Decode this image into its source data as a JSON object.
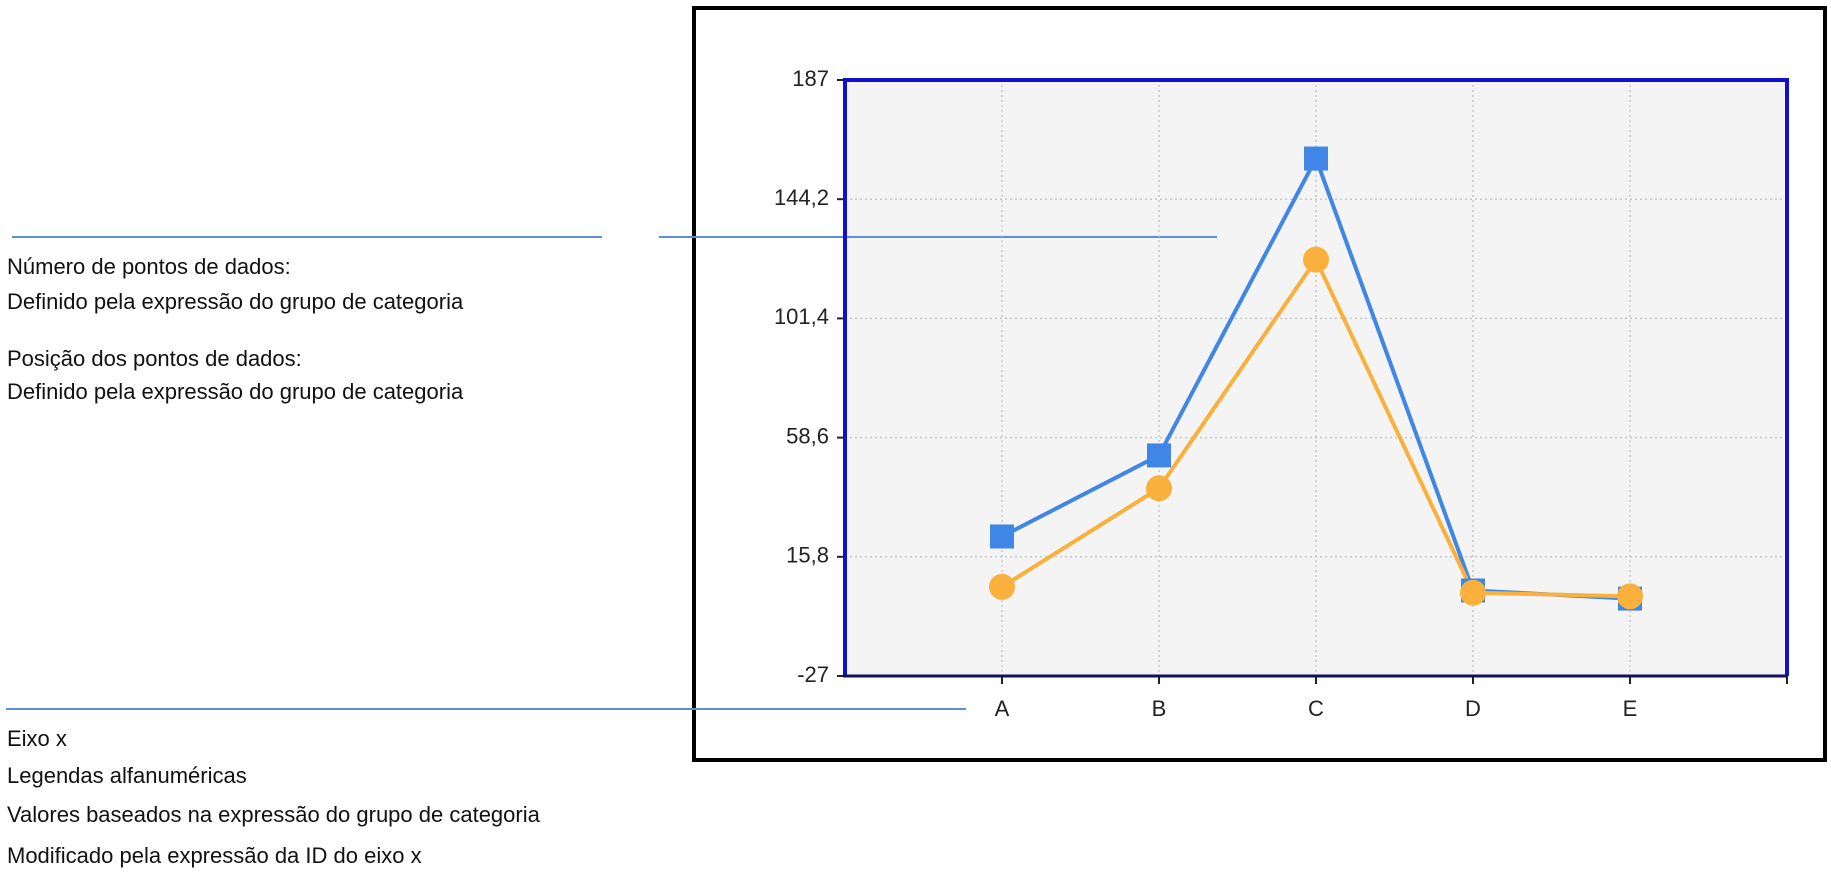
{
  "chart_data": {
    "type": "line",
    "categories": [
      "A",
      "B",
      "C",
      "D",
      "E"
    ],
    "series": [
      {
        "color": "#3f86e6",
        "marker": "square",
        "values": [
          23.1,
          52.2,
          158.8,
          3.7,
          0.8
        ]
      },
      {
        "color": "#f9b03c",
        "marker": "circle",
        "values": [
          5,
          40.4,
          122.5,
          2.9,
          1.6
        ]
      }
    ],
    "ylim": [
      -27,
      187
    ],
    "yticks": [
      -27,
      {
        "value": 15.8,
        "label": "15,8"
      },
      {
        "value": 58.6,
        "label": "58,6"
      },
      {
        "value": 101.4,
        "label": "101,4"
      },
      {
        "value": 144.2,
        "label": "144,2"
      },
      187
    ],
    "grid": true,
    "annotations": [
      "Número de pontos de dados:",
      "Definido pela expressão do grupo de categoria",
      "Posição dos pontos de dados:",
      "Definido pela expressão do grupo de categoria",
      "Eixo x",
      "Legendas alfanuméricas",
      "Valores baseados na expressão do grupo de categoria",
      "Modificado pela expressão da ID do eixo x"
    ]
  }
}
